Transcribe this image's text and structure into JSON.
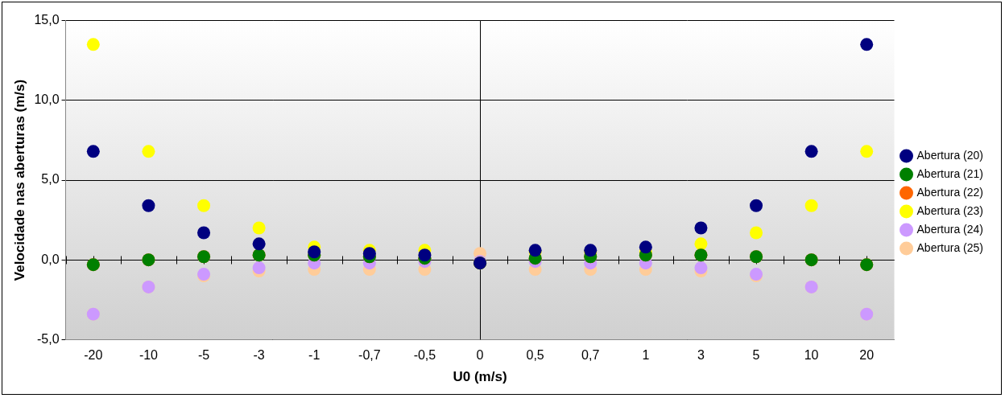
{
  "chart_data": {
    "type": "scatter",
    "x_label": "U0 (m/s)",
    "y_label": "Velocidade nas aberturas (m/s)",
    "categories": [
      "-20",
      "-10",
      "-5",
      "-3",
      "-1",
      "-0,7",
      "-0,5",
      "0",
      "0,5",
      "0,7",
      "1",
      "3",
      "5",
      "10",
      "20"
    ],
    "series": [
      {
        "name": "Abertura (20)",
        "color": "#000080",
        "values": [
          6.8,
          3.4,
          1.7,
          1.0,
          0.5,
          0.4,
          0.3,
          -0.2,
          0.6,
          0.6,
          0.8,
          2.0,
          3.4,
          6.8,
          13.5
        ]
      },
      {
        "name": "Abertura (21)",
        "color": "#008000",
        "values": [
          -0.3,
          0.0,
          0.2,
          0.3,
          0.3,
          0.2,
          0.1,
          -0.2,
          0.1,
          0.2,
          0.3,
          0.3,
          0.2,
          0.0,
          -0.3
        ]
      },
      {
        "name": "Abertura (22)",
        "color": "#FF6600",
        "values": [
          -0.3,
          0.0,
          0.2,
          0.3,
          0.3,
          0.2,
          0.1,
          -0.2,
          0.1,
          0.2,
          0.3,
          0.3,
          0.2,
          0.0,
          -0.3
        ]
      },
      {
        "name": "Abertura (23)",
        "color": "#FFFF00",
        "values": [
          13.5,
          6.8,
          3.4,
          2.0,
          0.8,
          0.6,
          0.6,
          -0.2,
          0.5,
          0.5,
          0.5,
          1.0,
          1.7,
          3.4,
          6.8
        ]
      },
      {
        "name": "Abertura (24)",
        "color": "#CC99FF",
        "values": [
          -3.4,
          -1.7,
          -0.9,
          -0.5,
          -0.2,
          -0.2,
          -0.1,
          -0.1,
          -0.1,
          -0.2,
          -0.2,
          -0.5,
          -0.9,
          -1.7,
          -3.4
        ]
      },
      {
        "name": "Abertura (25)",
        "color": "#FFCC99",
        "values": [
          -3.4,
          -1.7,
          -1.0,
          -0.7,
          -0.6,
          -0.6,
          -0.6,
          0.4,
          -0.6,
          -0.6,
          -0.6,
          -0.7,
          -1.0,
          -1.7,
          -3.4
        ]
      }
    ],
    "ylim": [
      -5,
      15
    ],
    "yticks": [
      {
        "value": -5,
        "label": "-5,0"
      },
      {
        "value": 0,
        "label": "0,0"
      },
      {
        "value": 5,
        "label": "5,0"
      },
      {
        "value": 10,
        "label": "10,0"
      },
      {
        "value": 15,
        "label": "15,0"
      }
    ],
    "grid": true,
    "legend": "right",
    "marker": "circle"
  }
}
